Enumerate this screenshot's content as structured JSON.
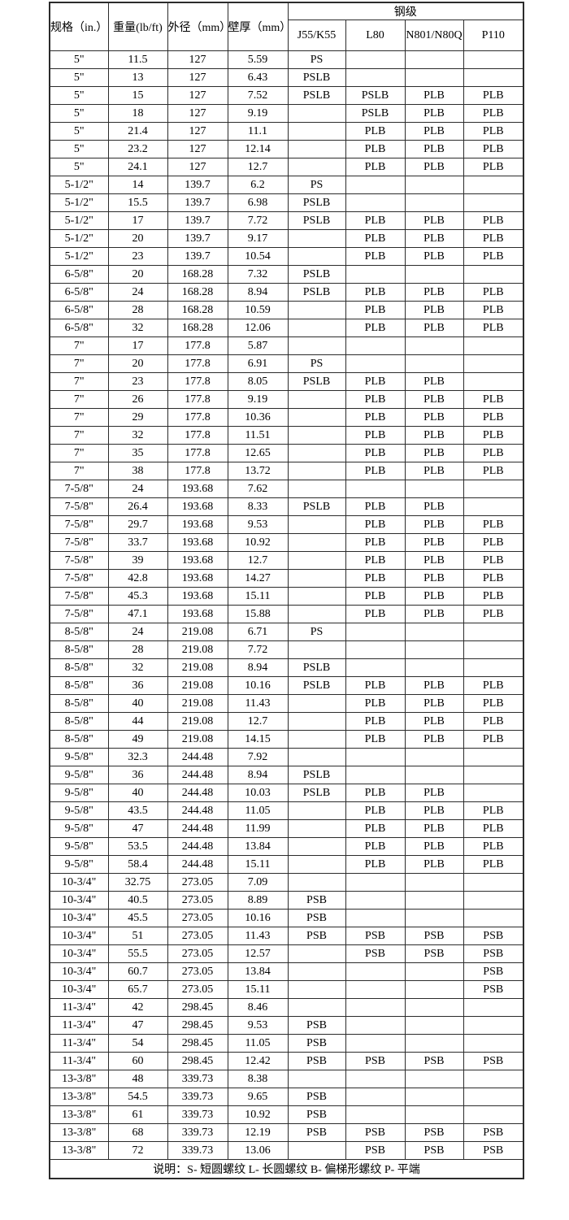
{
  "table": {
    "header": {
      "spec": "规格（in.）",
      "weight": "重量(lb/ft)",
      "od": "外径（mm）",
      "wall": "壁厚（mm）",
      "grade_group": "钢级",
      "grades": [
        "J55/K55",
        "L80",
        "N801/N80Q",
        "P110"
      ]
    },
    "rows": [
      [
        "5\"",
        "11.5",
        "127",
        "5.59",
        "PS",
        "",
        "",
        ""
      ],
      [
        "5\"",
        "13",
        "127",
        "6.43",
        "PSLB",
        "",
        "",
        ""
      ],
      [
        "5\"",
        "15",
        "127",
        "7.52",
        "PSLB",
        "PSLB",
        "PLB",
        "PLB"
      ],
      [
        "5\"",
        "18",
        "127",
        "9.19",
        "",
        "PSLB",
        "PLB",
        "PLB"
      ],
      [
        "5\"",
        "21.4",
        "127",
        "11.1",
        "",
        "PLB",
        "PLB",
        "PLB"
      ],
      [
        "5\"",
        "23.2",
        "127",
        "12.14",
        "",
        "PLB",
        "PLB",
        "PLB"
      ],
      [
        "5\"",
        "24.1",
        "127",
        "12.7",
        "",
        "PLB",
        "PLB",
        "PLB"
      ],
      [
        "5-1/2\"",
        "14",
        "139.7",
        "6.2",
        "PS",
        "",
        "",
        ""
      ],
      [
        "5-1/2\"",
        "15.5",
        "139.7",
        "6.98",
        "PSLB",
        "",
        "",
        ""
      ],
      [
        "5-1/2\"",
        "17",
        "139.7",
        "7.72",
        "PSLB",
        "PLB",
        "PLB",
        "PLB"
      ],
      [
        "5-1/2\"",
        "20",
        "139.7",
        "9.17",
        "",
        "PLB",
        "PLB",
        "PLB"
      ],
      [
        "5-1/2\"",
        "23",
        "139.7",
        "10.54",
        "",
        "PLB",
        "PLB",
        "PLB"
      ],
      [
        "6-5/8\"",
        "20",
        "168.28",
        "7.32",
        "PSLB",
        "",
        "",
        ""
      ],
      [
        "6-5/8\"",
        "24",
        "168.28",
        "8.94",
        "PSLB",
        "PLB",
        "PLB",
        "PLB"
      ],
      [
        "6-5/8\"",
        "28",
        "168.28",
        "10.59",
        "",
        "PLB",
        "PLB",
        "PLB"
      ],
      [
        "6-5/8\"",
        "32",
        "168.28",
        "12.06",
        "",
        "PLB",
        "PLB",
        "PLB"
      ],
      [
        "7\"",
        "17",
        "177.8",
        "5.87",
        "",
        "",
        "",
        ""
      ],
      [
        "7\"",
        "20",
        "177.8",
        "6.91",
        "PS",
        "",
        "",
        ""
      ],
      [
        "7\"",
        "23",
        "177.8",
        "8.05",
        "PSLB",
        "PLB",
        "PLB",
        ""
      ],
      [
        "7\"",
        "26",
        "177.8",
        "9.19",
        "",
        "PLB",
        "PLB",
        "PLB"
      ],
      [
        "7\"",
        "29",
        "177.8",
        "10.36",
        "",
        "PLB",
        "PLB",
        "PLB"
      ],
      [
        "7\"",
        "32",
        "177.8",
        "11.51",
        "",
        "PLB",
        "PLB",
        "PLB"
      ],
      [
        "7\"",
        "35",
        "177.8",
        "12.65",
        "",
        "PLB",
        "PLB",
        "PLB"
      ],
      [
        "7\"",
        "38",
        "177.8",
        "13.72",
        "",
        "PLB",
        "PLB",
        "PLB"
      ],
      [
        "7-5/8\"",
        "24",
        "193.68",
        "7.62",
        "",
        "",
        "",
        ""
      ],
      [
        "7-5/8\"",
        "26.4",
        "193.68",
        "8.33",
        "PSLB",
        "PLB",
        "PLB",
        ""
      ],
      [
        "7-5/8\"",
        "29.7",
        "193.68",
        "9.53",
        "",
        "PLB",
        "PLB",
        "PLB"
      ],
      [
        "7-5/8\"",
        "33.7",
        "193.68",
        "10.92",
        "",
        "PLB",
        "PLB",
        "PLB"
      ],
      [
        "7-5/8\"",
        "39",
        "193.68",
        "12.7",
        "",
        "PLB",
        "PLB",
        "PLB"
      ],
      [
        "7-5/8\"",
        "42.8",
        "193.68",
        "14.27",
        "",
        "PLB",
        "PLB",
        "PLB"
      ],
      [
        "7-5/8\"",
        "45.3",
        "193.68",
        "15.11",
        "",
        "PLB",
        "PLB",
        "PLB"
      ],
      [
        "7-5/8\"",
        "47.1",
        "193.68",
        "15.88",
        "",
        "PLB",
        "PLB",
        "PLB"
      ],
      [
        "8-5/8\"",
        "24",
        "219.08",
        "6.71",
        "PS",
        "",
        "",
        ""
      ],
      [
        "8-5/8\"",
        "28",
        "219.08",
        "7.72",
        "",
        "",
        "",
        ""
      ],
      [
        "8-5/8\"",
        "32",
        "219.08",
        "8.94",
        "PSLB",
        "",
        "",
        ""
      ],
      [
        "8-5/8\"",
        "36",
        "219.08",
        "10.16",
        "PSLB",
        "PLB",
        "PLB",
        "PLB"
      ],
      [
        "8-5/8\"",
        "40",
        "219.08",
        "11.43",
        "",
        "PLB",
        "PLB",
        "PLB"
      ],
      [
        "8-5/8\"",
        "44",
        "219.08",
        "12.7",
        "",
        "PLB",
        "PLB",
        "PLB"
      ],
      [
        "8-5/8\"",
        "49",
        "219.08",
        "14.15",
        "",
        "PLB",
        "PLB",
        "PLB"
      ],
      [
        "9-5/8\"",
        "32.3",
        "244.48",
        "7.92",
        "",
        "",
        "",
        ""
      ],
      [
        "9-5/8\"",
        "36",
        "244.48",
        "8.94",
        "PSLB",
        "",
        "",
        ""
      ],
      [
        "9-5/8\"",
        "40",
        "244.48",
        "10.03",
        "PSLB",
        "PLB",
        "PLB",
        ""
      ],
      [
        "9-5/8\"",
        "43.5",
        "244.48",
        "11.05",
        "",
        "PLB",
        "PLB",
        "PLB"
      ],
      [
        "9-5/8\"",
        "47",
        "244.48",
        "11.99",
        "",
        "PLB",
        "PLB",
        "PLB"
      ],
      [
        "9-5/8\"",
        "53.5",
        "244.48",
        "13.84",
        "",
        "PLB",
        "PLB",
        "PLB"
      ],
      [
        "9-5/8\"",
        "58.4",
        "244.48",
        "15.11",
        "",
        "PLB",
        "PLB",
        "PLB"
      ],
      [
        "10-3/4\"",
        "32.75",
        "273.05",
        "7.09",
        "",
        "",
        "",
        ""
      ],
      [
        "10-3/4\"",
        "40.5",
        "273.05",
        "8.89",
        "PSB",
        "",
        "",
        ""
      ],
      [
        "10-3/4\"",
        "45.5",
        "273.05",
        "10.16",
        "PSB",
        "",
        "",
        ""
      ],
      [
        "10-3/4\"",
        "51",
        "273.05",
        "11.43",
        "PSB",
        "PSB",
        "PSB",
        "PSB"
      ],
      [
        "10-3/4\"",
        "55.5",
        "273.05",
        "12.57",
        "",
        "PSB",
        "PSB",
        "PSB"
      ],
      [
        "10-3/4\"",
        "60.7",
        "273.05",
        "13.84",
        "",
        "",
        "",
        "PSB"
      ],
      [
        "10-3/4\"",
        "65.7",
        "273.05",
        "15.11",
        "",
        "",
        "",
        "PSB"
      ],
      [
        "11-3/4\"",
        "42",
        "298.45",
        "8.46",
        "",
        "",
        "",
        ""
      ],
      [
        "11-3/4\"",
        "47",
        "298.45",
        "9.53",
        "PSB",
        "",
        "",
        ""
      ],
      [
        "11-3/4\"",
        "54",
        "298.45",
        "11.05",
        "PSB",
        "",
        "",
        ""
      ],
      [
        "11-3/4\"",
        "60",
        "298.45",
        "12.42",
        "PSB",
        "PSB",
        "PSB",
        "PSB"
      ],
      [
        "13-3/8\"",
        "48",
        "339.73",
        "8.38",
        "",
        "",
        "",
        ""
      ],
      [
        "13-3/8\"",
        "54.5",
        "339.73",
        "9.65",
        "PSB",
        "",
        "",
        ""
      ],
      [
        "13-3/8\"",
        "61",
        "339.73",
        "10.92",
        "PSB",
        "",
        "",
        ""
      ],
      [
        "13-3/8\"",
        "68",
        "339.73",
        "12.19",
        "PSB",
        "PSB",
        "PSB",
        "PSB"
      ],
      [
        "13-3/8\"",
        "72",
        "339.73",
        "13.06",
        "",
        "PSB",
        "PSB",
        "PSB"
      ]
    ],
    "footer": {
      "note": "说明：S- 短圆螺纹      L- 长圆螺纹      B- 偏梯形螺纹      P- 平端"
    },
    "colors": {
      "border": "#2b2b2b",
      "text": "#000000",
      "background": "#ffffff"
    }
  }
}
